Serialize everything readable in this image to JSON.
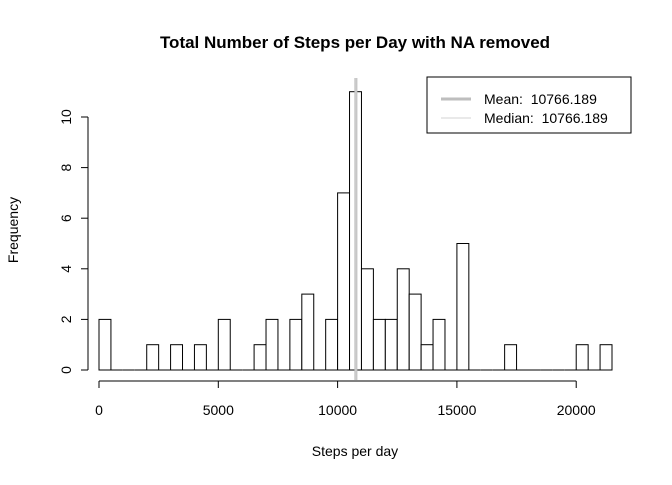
{
  "chart_data": {
    "type": "bar",
    "title": "Total Number of Steps per Day with NA removed",
    "xlabel": "Steps per day",
    "ylabel": "Frequency",
    "bin_width": 500,
    "x_start": 0,
    "values": [
      2,
      0,
      0,
      0,
      1,
      0,
      1,
      0,
      1,
      0,
      2,
      0,
      0,
      1,
      2,
      0,
      2,
      3,
      0,
      2,
      7,
      11,
      4,
      2,
      2,
      4,
      3,
      1,
      2,
      0,
      5,
      0,
      0,
      0,
      1,
      0,
      0,
      0,
      0,
      0,
      1,
      0,
      1
    ],
    "xlim": [
      0,
      21500
    ],
    "ylim": [
      0,
      11
    ],
    "xticks": [
      0,
      5000,
      10000,
      15000,
      20000
    ],
    "yticks": [
      0,
      2,
      4,
      6,
      8,
      10
    ],
    "grid": false,
    "bar_fill": "#ffffff",
    "bar_stroke": "#000000",
    "lines": [
      {
        "name": "Mean",
        "value": 10766.189,
        "color": "#bebebe",
        "width": 3
      },
      {
        "name": "Median",
        "value": 10766.189,
        "color": "#d3d3d3",
        "width": 1
      }
    ],
    "legend": {
      "position": "top-right",
      "entries": [
        "Mean:  10766.189",
        "Median:  10766.189"
      ]
    }
  }
}
